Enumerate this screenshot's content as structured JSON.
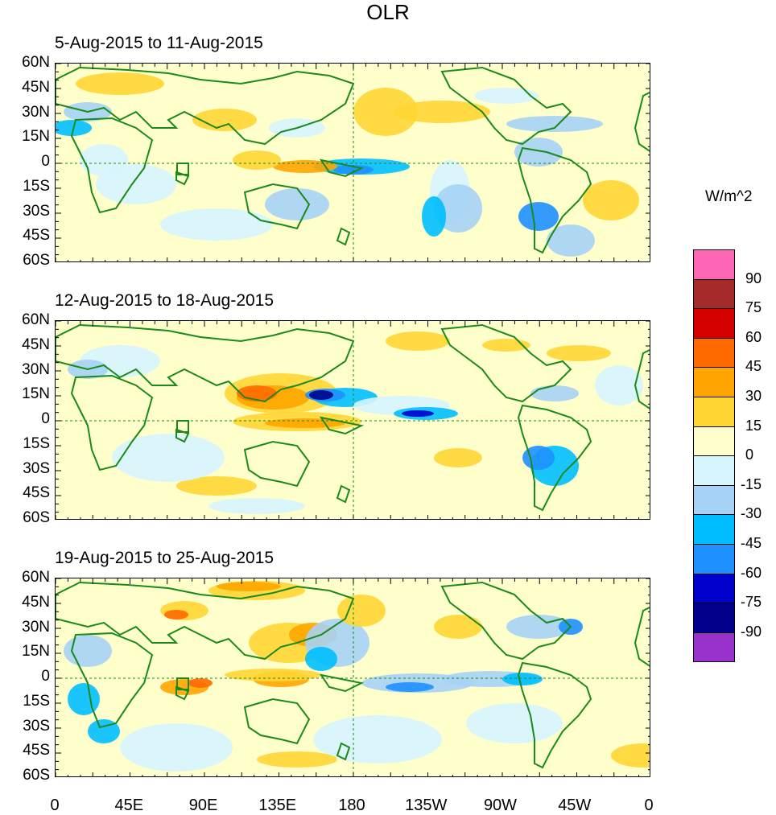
{
  "figure": {
    "title": "OLR",
    "colorbar_title": "W/m^2"
  },
  "panels": [
    {
      "label": "5-Aug-2015 to 11-Aug-2015"
    },
    {
      "label": "12-Aug-2015 to 18-Aug-2015"
    },
    {
      "label": "19-Aug-2015 to 25-Aug-2015"
    }
  ],
  "axes": {
    "lat_labels": [
      "60N",
      "45N",
      "30N",
      "15N",
      "0",
      "15S",
      "30S",
      "45S",
      "60S"
    ],
    "lon_labels": [
      "0",
      "45E",
      "90E",
      "135E",
      "180",
      "135W",
      "90W",
      "45W",
      "0"
    ]
  },
  "colorbar": {
    "levels": [
      "90",
      "75",
      "60",
      "45",
      "30",
      "15",
      "0",
      "-15",
      "-30",
      "-45",
      "-60",
      "-75",
      "-90"
    ],
    "colors": [
      "#ff66b3",
      "#a52a2a",
      "#d40000",
      "#ff6a00",
      "#ffa500",
      "#ffd633",
      "#ffffcc",
      "#d6f5ff",
      "#a6d3f5",
      "#00bfff",
      "#1e90ff",
      "#0000cd",
      "#00008b",
      "#9932cc"
    ]
  },
  "palette": {
    "background": "#ffffcc",
    "coast": "#1a8a1a"
  }
}
